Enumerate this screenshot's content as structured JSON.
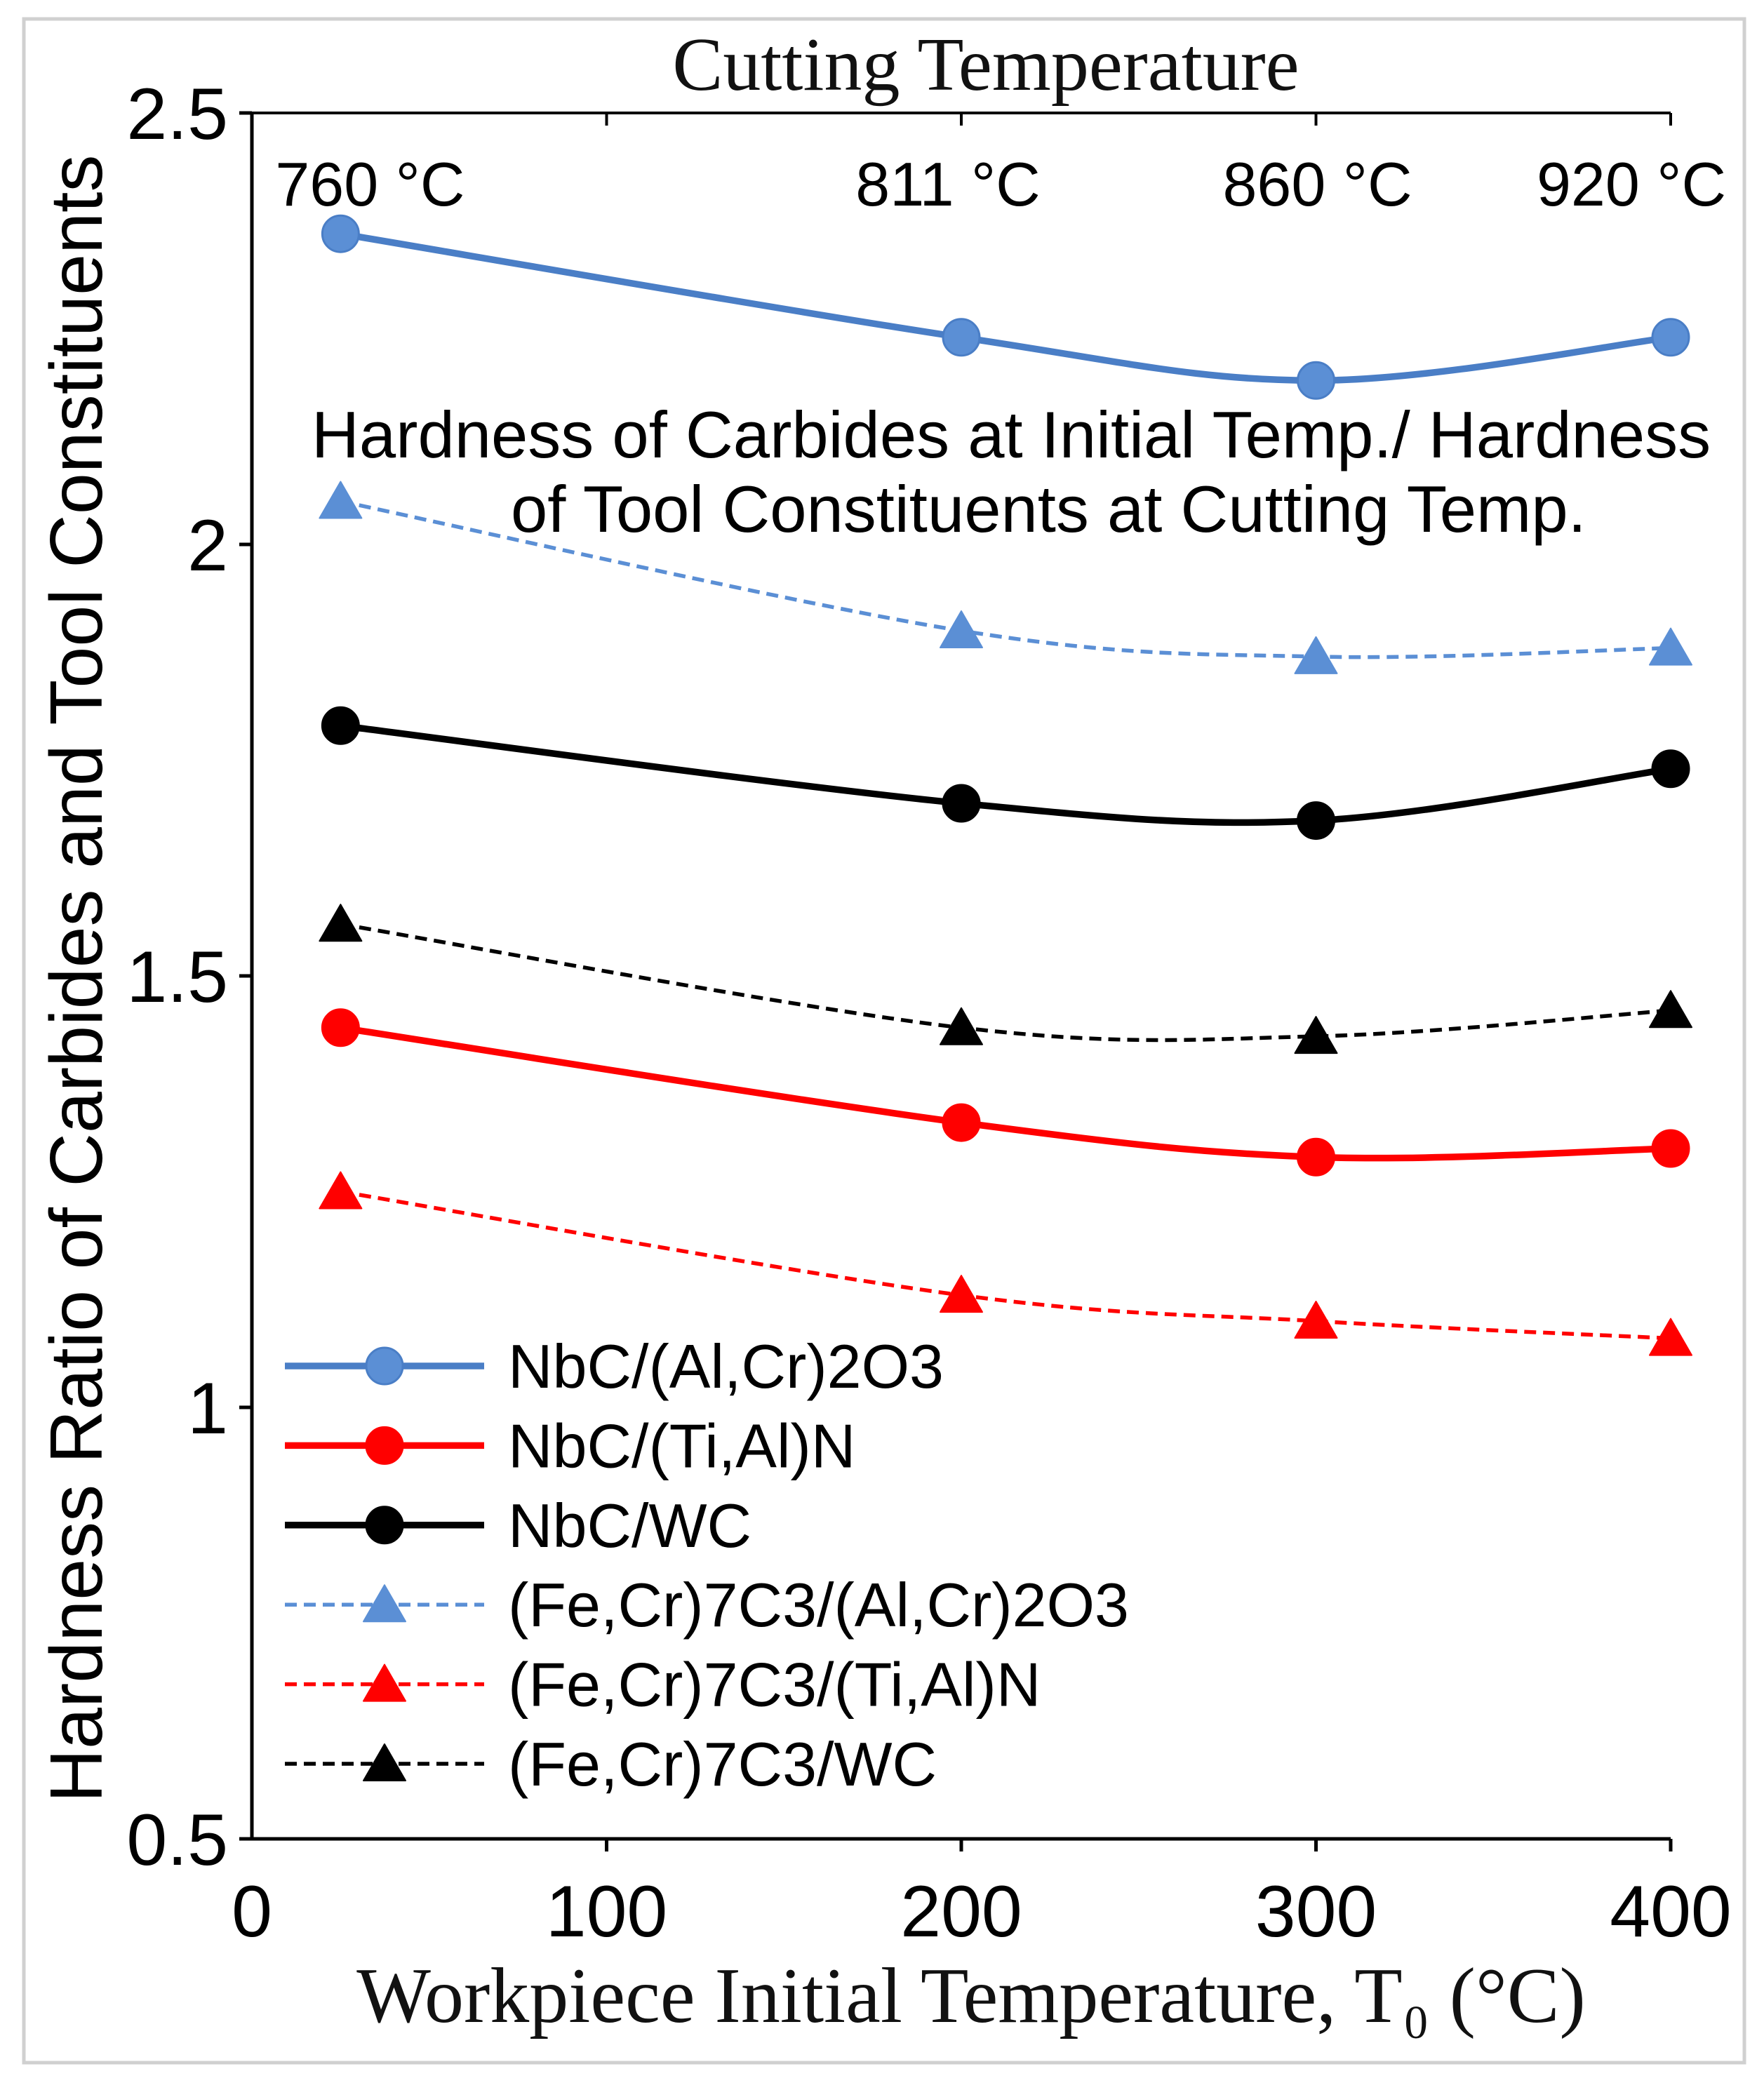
{
  "chart_data": {
    "type": "line",
    "xlabel": "Workpiece Initial Temperature, T₀ (°C)",
    "ylabel": "Hardness Ratio of Carbides and Tool Constituents",
    "x2label": "Cutting Temperature",
    "xlim": [
      0,
      400
    ],
    "ylim": [
      0.5,
      2.5
    ],
    "xticks": [
      0,
      100,
      200,
      300,
      400
    ],
    "xtick_labels": [
      "0",
      "100",
      "200",
      "300",
      "400"
    ],
    "yticks": [
      0.5,
      1,
      1.5,
      2,
      2.5
    ],
    "ytick_labels": [
      "0.5",
      "1",
      "1.5",
      "2",
      "2.5"
    ],
    "x2ticks": [
      {
        "x": 25,
        "label": "760 °C"
      },
      {
        "x": 200,
        "label": "811 °C"
      },
      {
        "x": 300,
        "label": "860 °C"
      },
      {
        "x": 400,
        "label": "920 °C"
      }
    ],
    "annotation": [
      "Hardness of Carbides at Initial Temp./ Hardness",
      "of Tool Constituents at Cutting Temp."
    ],
    "x": [
      25,
      200,
      300,
      400
    ],
    "series": [
      {
        "name": "NbC/(Al,Cr)2O3",
        "values": [
          2.36,
          2.24,
          2.19,
          2.24
        ],
        "dashed": false,
        "color": "#4A7EC6",
        "marker_color": "#5B8FD5"
      },
      {
        "name": "NbC/(Ti,Al)N",
        "values": [
          1.44,
          1.33,
          1.29,
          1.3
        ],
        "dashed": false,
        "color": "#FF0000",
        "marker_color": "#FF0000"
      },
      {
        "name": "NbC/WC",
        "values": [
          1.79,
          1.7,
          1.68,
          1.74
        ],
        "dashed": false,
        "color": "#000000",
        "marker_color": "#000000"
      },
      {
        "name": "(Fe,Cr)7C3/(Al,Cr)2O3",
        "values": [
          2.05,
          1.9,
          1.87,
          1.88
        ],
        "dashed": true,
        "color": "#5B8FD5",
        "marker_color": "#5B8FD5"
      },
      {
        "name": "(Fe,Cr)7C3/(Ti,Al)N",
        "values": [
          1.25,
          1.13,
          1.1,
          1.08
        ],
        "dashed": true,
        "color": "#FF0000",
        "marker_color": "#FF0000"
      },
      {
        "name": "(Fe,Cr)7C3/WC",
        "values": [
          1.56,
          1.44,
          1.43,
          1.46
        ],
        "dashed": true,
        "color": "#000000",
        "marker_color": "#000000"
      }
    ],
    "legend_position": "bottom-left",
    "grid": false,
    "smoothed": true
  }
}
